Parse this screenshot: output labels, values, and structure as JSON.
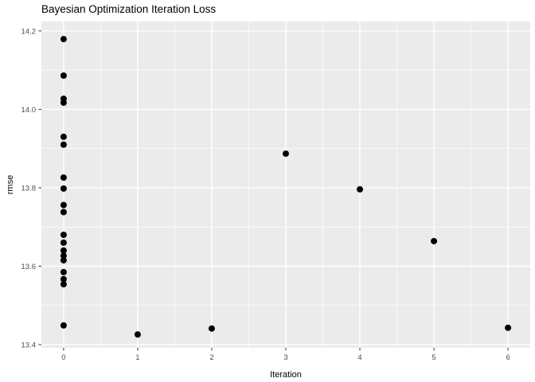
{
  "title": "Bayesian Optimization Iteration Loss",
  "chart_data": {
    "type": "scatter",
    "title": "Bayesian Optimization Iteration Loss",
    "xlabel": "Iteration",
    "ylabel": "rmse",
    "x_ticks": [
      0,
      1,
      2,
      3,
      4,
      5,
      6
    ],
    "y_ticks": [
      "13.4",
      "13.6",
      "13.8",
      "14.0",
      "14.2"
    ],
    "x_minor": [
      0.5,
      1.5,
      2.5,
      3.5,
      4.5,
      5.5
    ],
    "y_minor": [
      13.5,
      13.7,
      13.9,
      14.1
    ],
    "xlim": [
      -0.3,
      6.3
    ],
    "ylim": [
      13.392,
      14.224
    ],
    "grid": "on",
    "legend": "none",
    "theme": {
      "panel_bg": "#EBEBEB",
      "grid_color": "#FFFFFF",
      "point_color": "#000000",
      "tick_label_color": "#4D4D4D",
      "tick_mark_color": "#333333",
      "axis_title_color": "#000000",
      "title_color": "#000000"
    },
    "points": [
      [
        0,
        14.179
      ],
      [
        0,
        14.086
      ],
      [
        0,
        14.027
      ],
      [
        0,
        14.017
      ],
      [
        0,
        13.93
      ],
      [
        0,
        13.91
      ],
      [
        0,
        13.826
      ],
      [
        0,
        13.798
      ],
      [
        0,
        13.756
      ],
      [
        0,
        13.738
      ],
      [
        0,
        13.68
      ],
      [
        0,
        13.66
      ],
      [
        0,
        13.64
      ],
      [
        0,
        13.627
      ],
      [
        0,
        13.615
      ],
      [
        0,
        13.585
      ],
      [
        0,
        13.567
      ],
      [
        0,
        13.554
      ],
      [
        0,
        13.449
      ],
      [
        1,
        13.426
      ],
      [
        2,
        13.441
      ],
      [
        3,
        13.887
      ],
      [
        4,
        13.796
      ],
      [
        5,
        13.664
      ],
      [
        6,
        13.443
      ]
    ]
  }
}
